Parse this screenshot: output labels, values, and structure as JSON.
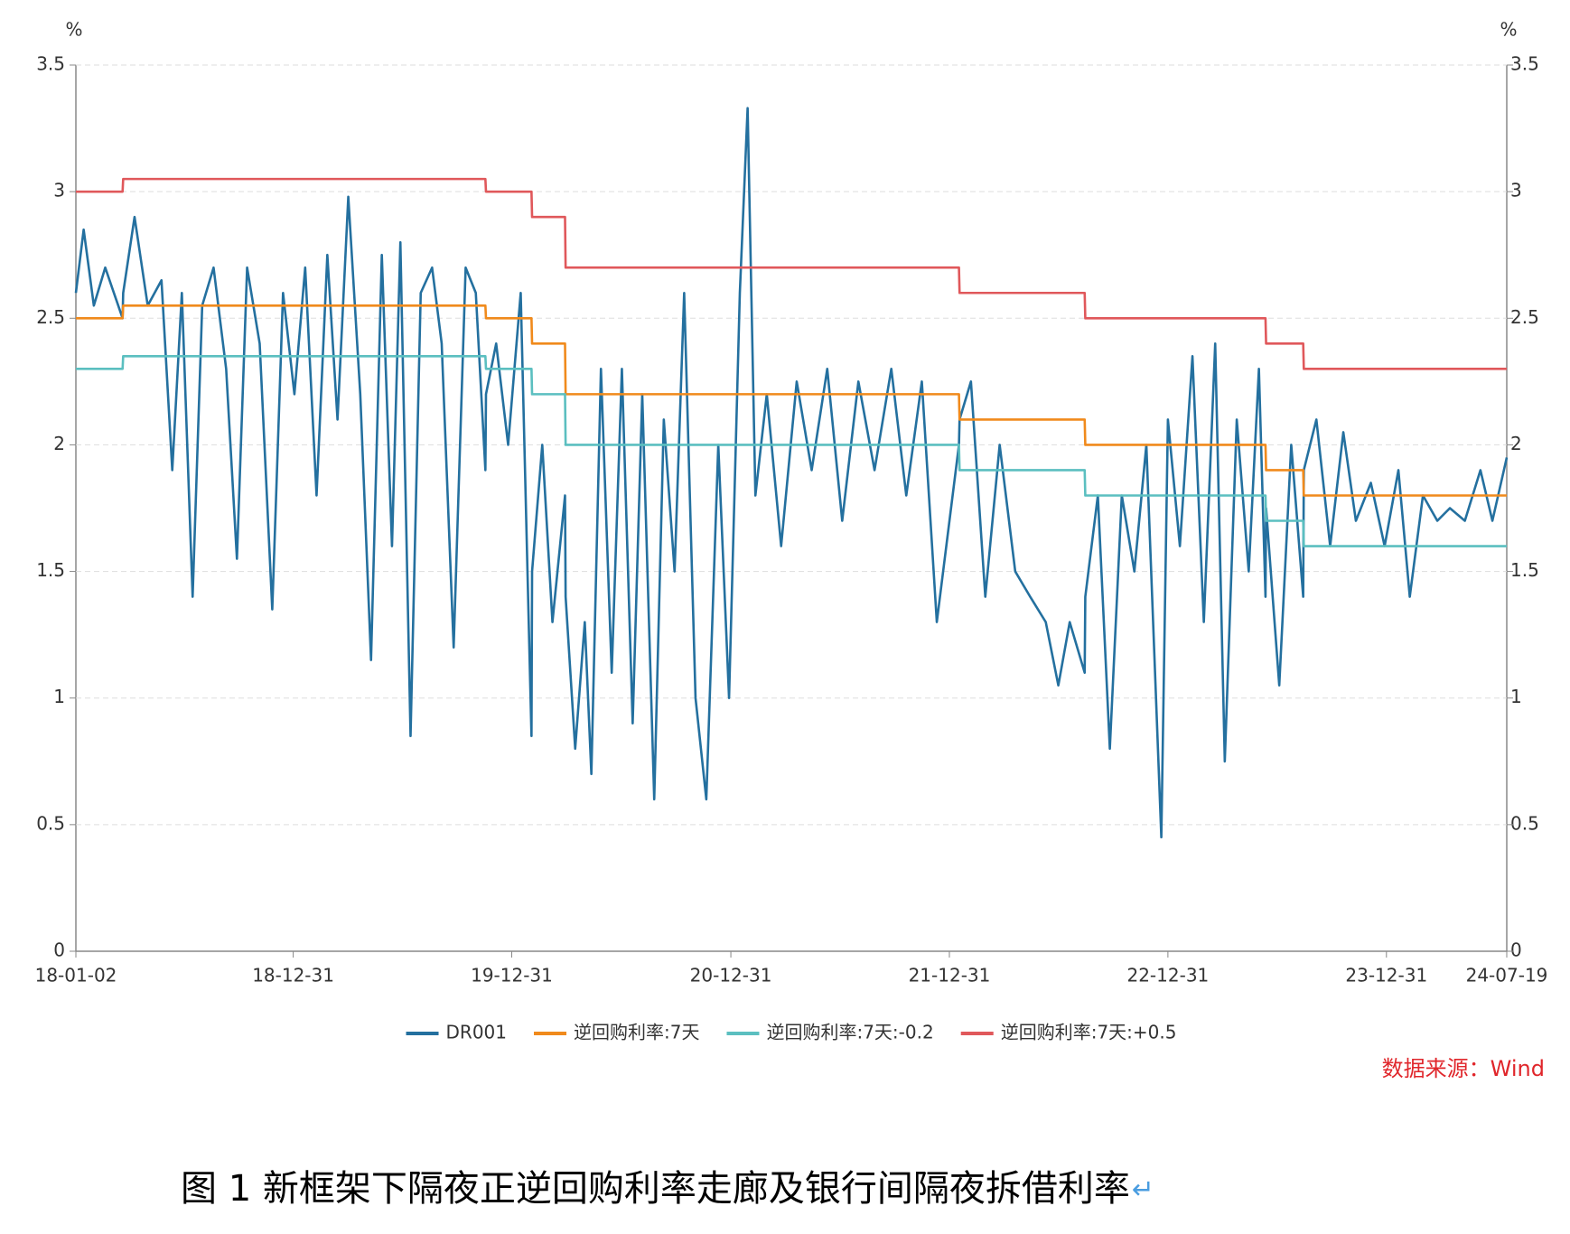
{
  "chart_data": {
    "type": "line",
    "y_unit": "%",
    "y2_unit": "%",
    "source": "数据来源：Wind",
    "caption": "图 1  新框架下隔夜正逆回购利率走廊及银行间隔夜拆借利率",
    "caption_mark": "↵",
    "legend": "bottom",
    "grid": true,
    "ylim": [
      0,
      3.5
    ],
    "yticks": [
      0,
      0.5,
      1,
      1.5,
      2,
      2.5,
      3,
      3.5
    ],
    "y2lim": [
      0,
      3.5
    ],
    "y2ticks": [
      0,
      0.5,
      1,
      1.5,
      2,
      2.5,
      3,
      3.5
    ],
    "xlim": [
      "18-01-02",
      "24-07-19"
    ],
    "xticks": [
      "18-01-02",
      "18-12-31",
      "19-12-31",
      "20-12-31",
      "21-12-31",
      "22-12-31",
      "23-12-31",
      "24-07-19"
    ],
    "x": [
      "18-01-02",
      "18-01-15",
      "18-02-01",
      "18-02-20",
      "18-03-21",
      "18-03-22",
      "18-04-10",
      "18-05-02",
      "18-05-25",
      "18-06-12",
      "18-06-28",
      "18-07-16",
      "18-08-01",
      "18-08-20",
      "18-09-10",
      "18-09-28",
      "18-10-15",
      "18-11-05",
      "18-11-26",
      "18-12-14",
      "19-01-02",
      "19-01-20",
      "19-02-08",
      "19-02-26",
      "19-03-15",
      "19-04-02",
      "19-04-22",
      "19-05-10",
      "19-05-28",
      "19-06-14",
      "19-06-28",
      "19-07-15",
      "19-08-01",
      "19-08-20",
      "19-09-05",
      "19-09-25",
      "19-10-15",
      "19-11-01",
      "19-11-17",
      "19-11-18",
      "19-12-05",
      "19-12-25",
      "20-01-15",
      "20-02-02",
      "20-02-03",
      "20-02-20",
      "20-03-08",
      "20-03-29",
      "20-03-30",
      "20-04-15",
      "20-05-01",
      "20-05-12",
      "20-05-28",
      "20-06-15",
      "20-07-02",
      "20-07-20",
      "20-08-05",
      "20-08-25",
      "20-09-10",
      "20-09-28",
      "20-10-14",
      "20-11-02",
      "20-11-20",
      "20-12-10",
      "20-12-28",
      "21-01-15",
      "21-01-28",
      "21-02-10",
      "21-03-01",
      "21-03-25",
      "21-04-20",
      "21-05-15",
      "21-06-10",
      "21-07-05",
      "21-08-01",
      "21-08-28",
      "21-09-25",
      "21-10-20",
      "21-11-15",
      "21-12-10",
      "22-01-16",
      "22-01-17",
      "22-02-05",
      "22-03-01",
      "22-03-25",
      "22-04-20",
      "22-05-15",
      "22-06-10",
      "22-07-01",
      "22-07-20",
      "22-08-14",
      "22-08-15",
      "22-09-05",
      "22-09-25",
      "22-10-15",
      "22-11-05",
      "22-11-25",
      "22-12-20",
      "22-12-31",
      "23-01-20",
      "23-02-10",
      "23-03-01",
      "23-03-20",
      "23-04-05",
      "23-04-25",
      "23-05-15",
      "23-06-01",
      "23-06-12",
      "23-06-13",
      "23-07-05",
      "23-07-25",
      "23-08-14",
      "23-08-15",
      "23-09-05",
      "23-09-28",
      "23-10-20",
      "23-11-10",
      "23-12-05",
      "23-12-28",
      "24-01-20",
      "24-02-08",
      "24-03-01",
      "24-03-25",
      "24-04-15",
      "24-05-10",
      "24-06-05",
      "24-06-25",
      "24-07-19"
    ],
    "series": [
      {
        "name": "DR001",
        "color": "#24709f",
        "width": 2.6,
        "values": [
          2.6,
          2.85,
          2.55,
          2.7,
          2.5,
          2.6,
          2.9,
          2.55,
          2.65,
          1.9,
          2.6,
          1.4,
          2.55,
          2.7,
          2.3,
          1.55,
          2.7,
          2.4,
          1.35,
          2.6,
          2.2,
          2.7,
          1.8,
          2.75,
          2.1,
          2.98,
          2.2,
          1.15,
          2.75,
          1.6,
          2.8,
          0.85,
          2.6,
          2.7,
          2.4,
          1.2,
          2.7,
          2.6,
          1.9,
          2.2,
          2.4,
          2.0,
          2.6,
          0.85,
          1.5,
          2.0,
          1.3,
          1.8,
          1.4,
          0.8,
          1.3,
          0.7,
          2.3,
          1.1,
          2.3,
          0.9,
          2.2,
          0.6,
          2.1,
          1.5,
          2.6,
          1.0,
          0.6,
          2.0,
          1.0,
          2.6,
          3.33,
          1.8,
          2.2,
          1.6,
          2.25,
          1.9,
          2.3,
          1.7,
          2.25,
          1.9,
          2.3,
          1.8,
          2.25,
          1.3,
          2.0,
          2.1,
          2.25,
          1.4,
          2.0,
          1.5,
          1.4,
          1.3,
          1.05,
          1.3,
          1.1,
          1.4,
          1.8,
          0.8,
          1.8,
          1.5,
          2.0,
          0.45,
          2.1,
          1.6,
          2.35,
          1.3,
          2.4,
          0.75,
          2.1,
          1.5,
          2.3,
          1.4,
          1.75,
          1.05,
          2.0,
          1.4,
          1.9,
          2.1,
          1.6,
          2.05,
          1.7,
          1.85,
          1.6,
          1.9,
          1.4,
          1.8,
          1.7,
          1.75,
          1.7,
          1.9,
          1.7,
          1.95
        ]
      },
      {
        "name": "逆回购利率:7天",
        "color": "#f08a1c",
        "width": 2.6,
        "values": [
          2.5,
          2.5,
          2.5,
          2.5,
          2.5,
          2.55,
          2.55,
          2.55,
          2.55,
          2.55,
          2.55,
          2.55,
          2.55,
          2.55,
          2.55,
          2.55,
          2.55,
          2.55,
          2.55,
          2.55,
          2.55,
          2.55,
          2.55,
          2.55,
          2.55,
          2.55,
          2.55,
          2.55,
          2.55,
          2.55,
          2.55,
          2.55,
          2.55,
          2.55,
          2.55,
          2.55,
          2.55,
          2.55,
          2.55,
          2.5,
          2.5,
          2.5,
          2.5,
          2.5,
          2.4,
          2.4,
          2.4,
          2.4,
          2.2,
          2.2,
          2.2,
          2.2,
          2.2,
          2.2,
          2.2,
          2.2,
          2.2,
          2.2,
          2.2,
          2.2,
          2.2,
          2.2,
          2.2,
          2.2,
          2.2,
          2.2,
          2.2,
          2.2,
          2.2,
          2.2,
          2.2,
          2.2,
          2.2,
          2.2,
          2.2,
          2.2,
          2.2,
          2.2,
          2.2,
          2.2,
          2.2,
          2.1,
          2.1,
          2.1,
          2.1,
          2.1,
          2.1,
          2.1,
          2.1,
          2.1,
          2.1,
          2.0,
          2.0,
          2.0,
          2.0,
          2.0,
          2.0,
          2.0,
          2.0,
          2.0,
          2.0,
          2.0,
          2.0,
          2.0,
          2.0,
          2.0,
          2.0,
          2.0,
          1.9,
          1.9,
          1.9,
          1.9,
          1.8,
          1.8,
          1.8,
          1.8,
          1.8,
          1.8,
          1.8,
          1.8,
          1.8,
          1.8,
          1.8,
          1.8,
          1.8,
          1.8,
          1.8,
          1.8
        ]
      },
      {
        "name": "逆回购利率:7天:-0.2",
        "color": "#5bbfc0",
        "width": 2.6,
        "values": [
          2.3,
          2.3,
          2.3,
          2.3,
          2.3,
          2.35,
          2.35,
          2.35,
          2.35,
          2.35,
          2.35,
          2.35,
          2.35,
          2.35,
          2.35,
          2.35,
          2.35,
          2.35,
          2.35,
          2.35,
          2.35,
          2.35,
          2.35,
          2.35,
          2.35,
          2.35,
          2.35,
          2.35,
          2.35,
          2.35,
          2.35,
          2.35,
          2.35,
          2.35,
          2.35,
          2.35,
          2.35,
          2.35,
          2.35,
          2.3,
          2.3,
          2.3,
          2.3,
          2.3,
          2.2,
          2.2,
          2.2,
          2.2,
          2.0,
          2.0,
          2.0,
          2.0,
          2.0,
          2.0,
          2.0,
          2.0,
          2.0,
          2.0,
          2.0,
          2.0,
          2.0,
          2.0,
          2.0,
          2.0,
          2.0,
          2.0,
          2.0,
          2.0,
          2.0,
          2.0,
          2.0,
          2.0,
          2.0,
          2.0,
          2.0,
          2.0,
          2.0,
          2.0,
          2.0,
          2.0,
          2.0,
          1.9,
          1.9,
          1.9,
          1.9,
          1.9,
          1.9,
          1.9,
          1.9,
          1.9,
          1.9,
          1.8,
          1.8,
          1.8,
          1.8,
          1.8,
          1.8,
          1.8,
          1.8,
          1.8,
          1.8,
          1.8,
          1.8,
          1.8,
          1.8,
          1.8,
          1.8,
          1.8,
          1.7,
          1.7,
          1.7,
          1.7,
          1.6,
          1.6,
          1.6,
          1.6,
          1.6,
          1.6,
          1.6,
          1.6,
          1.6,
          1.6,
          1.6,
          1.6,
          1.6,
          1.6,
          1.6,
          1.6
        ]
      },
      {
        "name": "逆回购利率:7天:+0.5",
        "color": "#e0585b",
        "width": 2.6,
        "values": [
          3.0,
          3.0,
          3.0,
          3.0,
          3.0,
          3.05,
          3.05,
          3.05,
          3.05,
          3.05,
          3.05,
          3.05,
          3.05,
          3.05,
          3.05,
          3.05,
          3.05,
          3.05,
          3.05,
          3.05,
          3.05,
          3.05,
          3.05,
          3.05,
          3.05,
          3.05,
          3.05,
          3.05,
          3.05,
          3.05,
          3.05,
          3.05,
          3.05,
          3.05,
          3.05,
          3.05,
          3.05,
          3.05,
          3.05,
          3.0,
          3.0,
          3.0,
          3.0,
          3.0,
          2.9,
          2.9,
          2.9,
          2.9,
          2.7,
          2.7,
          2.7,
          2.7,
          2.7,
          2.7,
          2.7,
          2.7,
          2.7,
          2.7,
          2.7,
          2.7,
          2.7,
          2.7,
          2.7,
          2.7,
          2.7,
          2.7,
          2.7,
          2.7,
          2.7,
          2.7,
          2.7,
          2.7,
          2.7,
          2.7,
          2.7,
          2.7,
          2.7,
          2.7,
          2.7,
          2.7,
          2.7,
          2.6,
          2.6,
          2.6,
          2.6,
          2.6,
          2.6,
          2.6,
          2.6,
          2.6,
          2.6,
          2.5,
          2.5,
          2.5,
          2.5,
          2.5,
          2.5,
          2.5,
          2.5,
          2.5,
          2.5,
          2.5,
          2.5,
          2.5,
          2.5,
          2.5,
          2.5,
          2.5,
          2.4,
          2.4,
          2.4,
          2.4,
          2.3,
          2.3,
          2.3,
          2.3,
          2.3,
          2.3,
          2.3,
          2.3,
          2.3,
          2.3,
          2.3,
          2.3,
          2.3,
          2.3,
          2.3,
          2.3
        ]
      }
    ]
  }
}
